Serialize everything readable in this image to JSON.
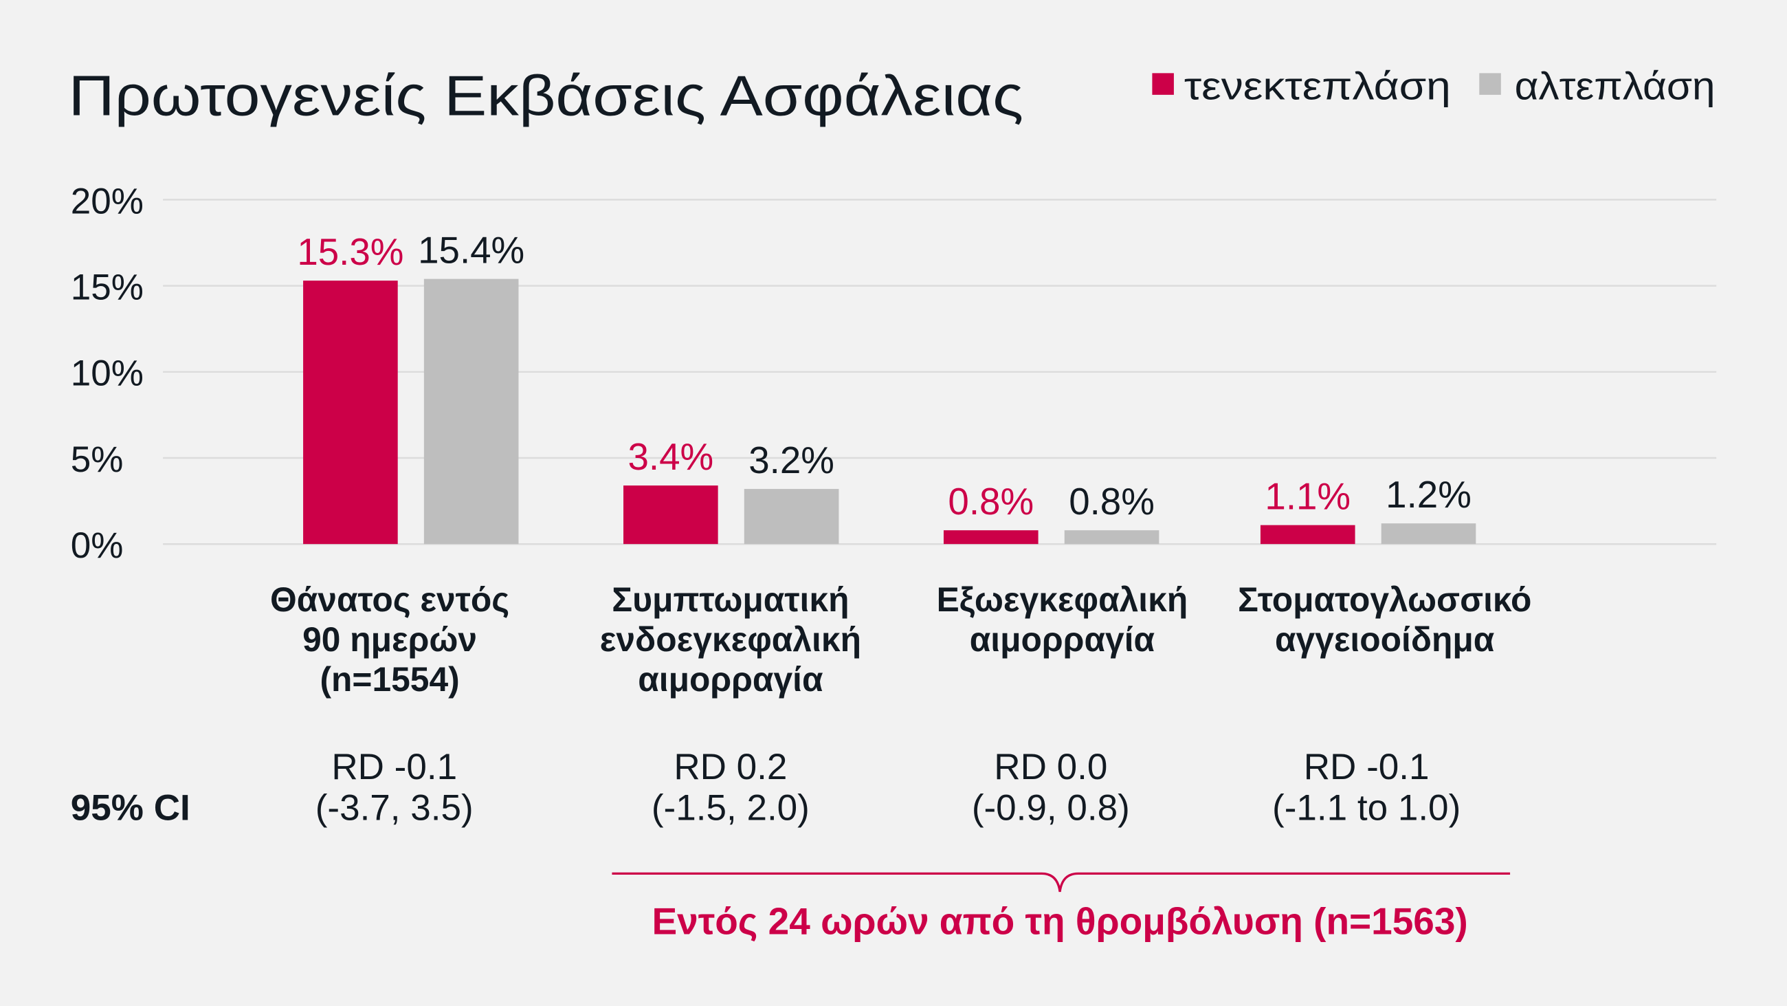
{
  "colors": {
    "primary": "#cc0048",
    "secondary": "#bebebe",
    "background": "#f2f2f2",
    "text": "#121a22",
    "grid": "#dcdcdc"
  },
  "chart_data": {
    "type": "bar",
    "title": "Πρωτογενείς Εκβάσεις Ασφάλειας",
    "categories": [
      [
        "Θάνατος εντός",
        "90 ημερών",
        "(n=1554)"
      ],
      [
        "Συμπτωματική",
        "ενδοεγκεφαλική",
        "αιμορραγία"
      ],
      [
        "Εξωεγκεφαλική",
        "αιμορραγία"
      ],
      [
        "Στοματογλωσσικό",
        "αγγειοοίδημα"
      ]
    ],
    "series": [
      {
        "name": "τενεκτεπλάση",
        "values": [
          15.3,
          3.4,
          0.8,
          1.1
        ],
        "labels": [
          "15.3%",
          "3.4%",
          "0.8%",
          "1.1%"
        ]
      },
      {
        "name": "αλτεπλάση",
        "values": [
          15.4,
          3.2,
          0.8,
          1.2
        ],
        "labels": [
          "15.4%",
          "3.2%",
          "0.8%",
          "1.2%"
        ]
      }
    ],
    "ylim": [
      0,
      20
    ],
    "yticks": [
      "0%",
      "5%",
      "10%",
      "15%",
      "20%"
    ],
    "ytick_values": [
      0,
      5,
      10,
      15,
      20
    ],
    "grid": true,
    "legend": "top-right",
    "ci_label": "95% CI",
    "ci": [
      [
        "RD -0.1",
        "(-3.7, 3.5)"
      ],
      [
        "RD 0.2",
        "(-1.5, 2.0)"
      ],
      [
        "RD 0.0",
        "(-0.9, 0.8)"
      ],
      [
        "RD -0.1",
        "(-1.1 to 1.0)"
      ]
    ],
    "bracket_note": "Εντός 24 ωρών από τη θρομβόλυση (n=1563)"
  }
}
